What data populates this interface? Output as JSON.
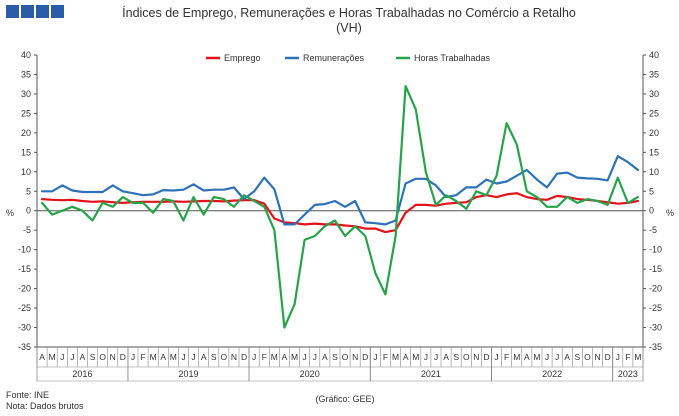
{
  "header": {
    "title_line1": "Índices de Emprego, Remunerações e Horas Trabalhadas no Comércio a Retalho",
    "title_line2": "(VH)",
    "logo_color": "#2a5ca8"
  },
  "footer": {
    "source": "Fonte: INE",
    "note": "Nota: Dados brutos",
    "credit": "(Gráfico: GEE)"
  },
  "chart_data": {
    "type": "line",
    "ylim": [
      -35,
      40
    ],
    "y_ticks": [
      -35,
      -30,
      -25,
      -20,
      -15,
      -10,
      -5,
      0,
      5,
      10,
      15,
      20,
      25,
      30,
      35,
      40
    ],
    "y_unit_left": "%",
    "y_unit_right": "%",
    "grid": false,
    "legend_position": "top-center",
    "x": [
      "A",
      "M",
      "J",
      "J",
      "A",
      "S",
      "O",
      "N",
      "D",
      "J",
      "F",
      "M",
      "A",
      "M",
      "J",
      "J",
      "A",
      "S",
      "O",
      "N",
      "D",
      "J",
      "F",
      "M",
      "A",
      "M",
      "J",
      "J",
      "A",
      "S",
      "O",
      "N",
      "D",
      "J",
      "F",
      "M",
      "A",
      "M",
      "J",
      "J",
      "A",
      "S",
      "O",
      "N",
      "D",
      "J",
      "F",
      "M",
      "A",
      "M",
      "J",
      "J",
      "A",
      "S",
      "O",
      "N",
      "D",
      "J",
      "F",
      "M"
    ],
    "year_groups": [
      {
        "label": "2016",
        "start": 0,
        "count": 9
      },
      {
        "label": "2019",
        "start": 9,
        "count": 12
      },
      {
        "label": "2020",
        "start": 21,
        "count": 12
      },
      {
        "label": "2021",
        "start": 33,
        "count": 12
      },
      {
        "label": "2022",
        "start": 45,
        "count": 12
      },
      {
        "label": "2023",
        "start": 57,
        "count": 3
      }
    ],
    "series": [
      {
        "name": "Emprego",
        "color": "#e3121b",
        "values": [
          3.0,
          2.8,
          2.7,
          2.8,
          2.5,
          2.3,
          2.4,
          2.2,
          2.0,
          2.2,
          2.3,
          2.3,
          2.3,
          2.4,
          2.3,
          2.4,
          2.5,
          2.5,
          2.4,
          2.6,
          2.7,
          2.7,
          1.8,
          -2.0,
          -3.0,
          -3.2,
          -3.5,
          -3.3,
          -3.5,
          -3.5,
          -3.8,
          -4.0,
          -4.6,
          -4.6,
          -5.5,
          -5.0,
          -0.5,
          1.5,
          1.5,
          1.3,
          1.8,
          2.0,
          2.2,
          3.5,
          4.0,
          3.5,
          4.2,
          4.5,
          3.5,
          3.0,
          2.8,
          3.8,
          3.5,
          3.0,
          2.8,
          2.5,
          2.2,
          1.8,
          2.0,
          2.5
        ]
      },
      {
        "name": "Remunerações",
        "color": "#2e72b8",
        "values": [
          5.0,
          5.0,
          6.5,
          5.2,
          4.8,
          4.8,
          4.8,
          6.5,
          5.0,
          4.5,
          4.0,
          4.2,
          5.3,
          5.2,
          5.4,
          6.8,
          5.2,
          5.4,
          5.4,
          6.0,
          3.0,
          5.0,
          8.5,
          5.5,
          -3.5,
          -3.5,
          -1.0,
          1.5,
          1.7,
          2.5,
          1.0,
          2.5,
          -3.0,
          -3.2,
          -3.5,
          -2.5,
          7.0,
          8.2,
          8.2,
          6.5,
          3.5,
          4.0,
          6.0,
          6.0,
          8.0,
          7.0,
          7.5,
          9.0,
          10.5,
          8.0,
          6.0,
          9.5,
          9.8,
          8.5,
          8.3,
          8.2,
          7.8,
          14.0,
          12.5,
          10.5
        ]
      },
      {
        "name": "Horas Trabalhadas",
        "color": "#27a34a",
        "values": [
          2.0,
          -1.0,
          0.0,
          1.0,
          0.0,
          -2.5,
          2.0,
          1.0,
          3.5,
          2.0,
          2.0,
          -0.5,
          3.0,
          2.5,
          -2.5,
          3.5,
          -1.0,
          3.5,
          3.0,
          1.0,
          4.0,
          2.5,
          1.0,
          -5.0,
          -30.0,
          -24.0,
          -7.5,
          -6.5,
          -4.0,
          -2.5,
          -6.5,
          -4.0,
          -6.5,
          -16.0,
          -21.5,
          -6.5,
          32.0,
          26.0,
          10.0,
          1.5,
          4.0,
          2.5,
          0.5,
          5.0,
          4.0,
          9.0,
          22.5,
          17.0,
          5.0,
          3.5,
          1.0,
          1.0,
          3.5,
          2.0,
          3.0,
          2.5,
          1.5,
          8.5,
          2.0,
          3.5
        ]
      }
    ]
  }
}
